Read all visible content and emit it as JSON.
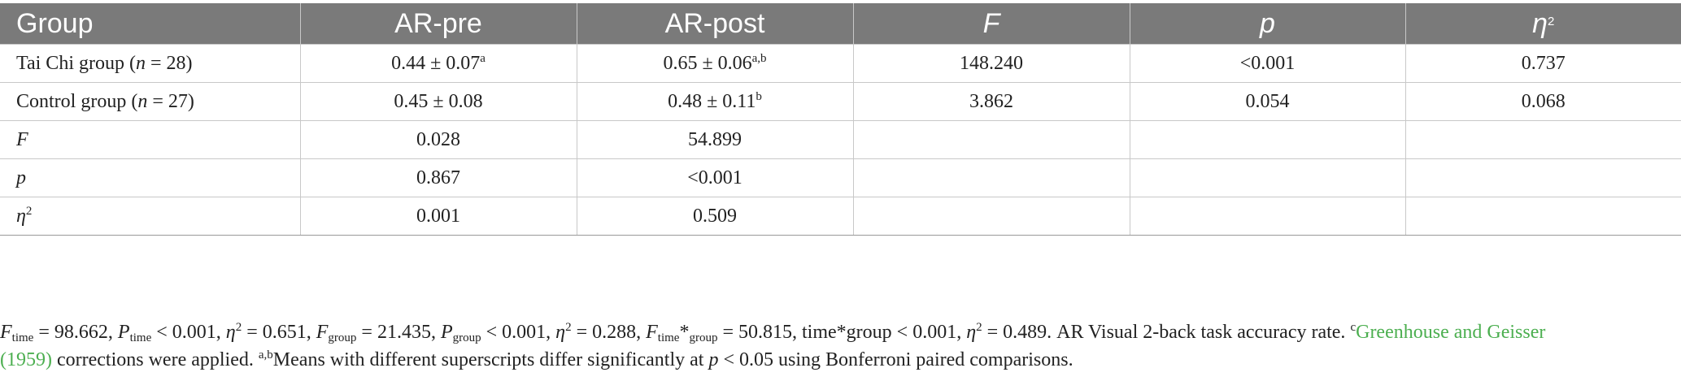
{
  "table": {
    "headers": [
      "Group",
      "AR-pre",
      "AR-post",
      "F",
      "p",
      "η"
    ],
    "eta_sup": "2",
    "rows": [
      {
        "label": "Tai Chi group (",
        "n_var": "n",
        "n_val": " = 28)",
        "pre": "0.44 ± 0.07",
        "pre_sup": "a",
        "post": "0.65 ± 0.06",
        "post_sup": "a,b",
        "F": "148.240",
        "p": "<0.001",
        "eta": "0.737"
      },
      {
        "label": "Control group (",
        "n_var": "n",
        "n_val": " = 27)",
        "pre": "0.45 ± 0.08",
        "pre_sup": "",
        "post": "0.48 ± 0.11",
        "post_sup": "b",
        "F": "3.862",
        "p": "0.054",
        "eta": "0.068"
      },
      {
        "label": "F",
        "pre": "0.028",
        "post": "54.899",
        "F": "",
        "p": "",
        "eta": ""
      },
      {
        "label": "p",
        "pre": "0.867",
        "post": "<0.001",
        "F": "",
        "p": "",
        "eta": ""
      },
      {
        "label": "η",
        "label_sup": "2",
        "pre": "0.001",
        "post": "0.509",
        "F": "",
        "p": "",
        "eta": ""
      }
    ]
  },
  "footnote": {
    "f_time_sym": "F",
    "f_time_sub": "time",
    "f_time_val": " = 98.662, ",
    "p_time_sym": "P",
    "p_time_sub": "time",
    "p_time_val": " < 0.001, ",
    "eta1_sym": "η",
    "eta1_sup": "2",
    "eta1_val": " = 0.651, ",
    "f_group_sym": "F",
    "f_group_sub": "group",
    "f_group_val": " = 21.435, ",
    "p_group_sym": "P",
    "p_group_sub": "group",
    "p_group_val": " < 0.001, ",
    "eta2_sym": "η",
    "eta2_sup": "2",
    "eta2_val": " = 0.288, ",
    "f_inter_sym": "F",
    "f_inter_sub": "time",
    "f_inter_star": "*",
    "f_inter_sub2": "group",
    "f_inter_val": " = 50.815, time*group < 0.001, ",
    "eta3_sym": "η",
    "eta3_sup": "2",
    "eta3_val": " = 0.489. AR Visual 2-back task accuracy rate. ",
    "c_sup": "c",
    "cite_line1": "Greenhouse and Geisser",
    "cite_line2": "(1959)",
    "after_cite": " corrections were applied. ",
    "ab_sup": "a,b",
    "means_text": "Means with different superscripts differ significantly at ",
    "p_sym": "p",
    "tail_text": " < 0.05 using Bonferroni paired comparisons."
  }
}
